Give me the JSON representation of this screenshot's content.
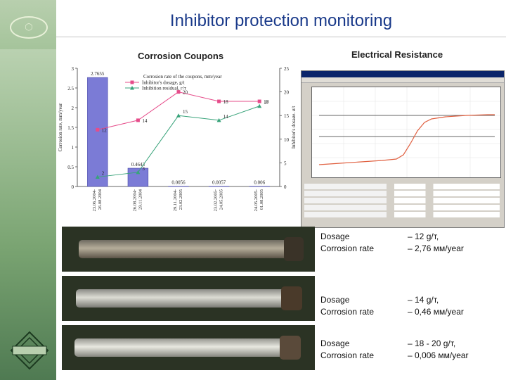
{
  "header": {
    "title": "Inhibitor protection monitoring"
  },
  "sections": {
    "coupons_label": "Corrosion Coupons",
    "er_label": "Electrical Resistance"
  },
  "colors": {
    "bar": "#7b7bd6",
    "dosage_line": "#e64c8a",
    "residual_line": "#38a37a",
    "title": "#1a3a8a"
  },
  "chart_data": {
    "type": "bar",
    "categories": [
      "23.06.2004-\n26.08.2004",
      "26.08.2004-\n29.11.2004",
      "29.11.2004-\n23.02.2005",
      "23.02.2005-\n24.05.2005",
      "24.05.2005-\n01.08.2005"
    ],
    "series": [
      {
        "name": "Corrosion rate of the coupons, mm/year",
        "kind": "bar",
        "axis": "left",
        "values": [
          2.7655,
          0.4643,
          0.0056,
          0.0057,
          0.006
        ]
      },
      {
        "name": "Inhibitor's dosage, g/t",
        "kind": "line",
        "axis": "right",
        "x": [
          0.5,
          1.5,
          2.5,
          3.5,
          4.5
        ],
        "values": [
          12,
          14,
          20,
          18,
          18
        ]
      },
      {
        "name": "Inhibition residual, г/т",
        "kind": "line",
        "axis": "right",
        "x": [
          0.5,
          1.5,
          2.5,
          3.5,
          4.5
        ],
        "values": [
          2,
          3,
          15,
          14,
          17
        ]
      }
    ],
    "data_labels": {
      "bars": [
        "2.7655",
        "0.4643",
        "0.0056",
        "0.0057",
        "0.006"
      ],
      "dosage": [
        "12",
        "14",
        "20",
        "18",
        "18"
      ],
      "residual": [
        "2",
        "3",
        "15",
        "14",
        "17"
      ]
    },
    "ylabel": "Corrosion rate, mm/year",
    "y2label": "Inhibitor's dosage, g/t",
    "ylim": [
      0,
      3
    ],
    "y2lim": [
      0,
      25
    ],
    "yticks": [
      "0",
      "0.5",
      "1",
      "1.5",
      "2",
      "2.5",
      "3"
    ],
    "y2ticks": [
      "0",
      "5",
      "10",
      "15",
      "20",
      "25"
    ],
    "legend_position": "top-center",
    "grid": false
  },
  "dosage_table": [
    {
      "dosage_label": "Dosage",
      "dosage_value": "– 12 g/т,",
      "rate_label": "Corrosion rate",
      "rate_value": "– 2,76 мм/year"
    },
    {
      "dosage_label": "Dosage",
      "dosage_value": "– 14 g/т,",
      "rate_label": "Corrosion rate",
      "rate_value": "– 0,46 мм/year"
    },
    {
      "dosage_label": "Dosage",
      "dosage_value": "– 18 - 20 g/т,",
      "rate_label": "Corrosion rate",
      "rate_value": "– 0,006 мм/year"
    }
  ]
}
